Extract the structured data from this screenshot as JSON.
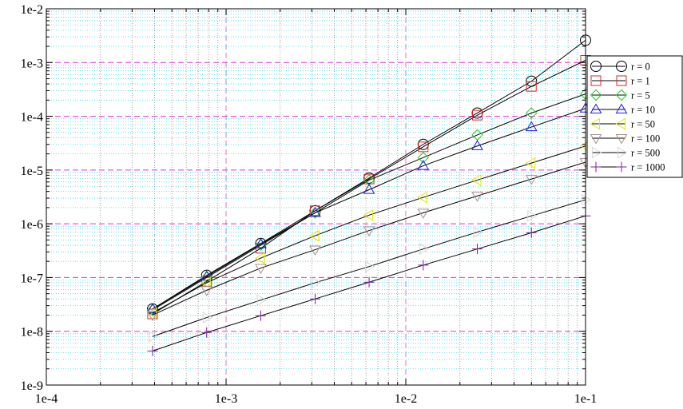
{
  "chart_data": {
    "type": "line",
    "title": "",
    "xlabel": "",
    "ylabel": "",
    "x_scale": "log",
    "y_scale": "log",
    "xlim": [
      0.0001,
      0.1
    ],
    "ylim": [
      1e-09,
      0.01
    ],
    "x_tick_labels": [
      "1e-4",
      "1e-3",
      "1e-2",
      "1e-1"
    ],
    "y_tick_labels": [
      "1e-9",
      "1e-8",
      "1e-7",
      "1e-6",
      "1e-5",
      "1e-4",
      "1e-3",
      "1e-2"
    ],
    "grid": {
      "major": "dashed magenta",
      "minor": "dotted cyan"
    },
    "legend_position": "right",
    "x": [
      0.00039,
      0.00078,
      0.00156,
      0.00313,
      0.00625,
      0.0125,
      0.025,
      0.05,
      0.1
    ],
    "series": [
      {
        "name": "r = 0",
        "marker": "circle",
        "color": "#000000",
        "values": [
          2.6e-08,
          1.1e-07,
          4.3e-07,
          1.75e-06,
          7.1e-06,
          3e-05,
          0.000115,
          0.00045,
          0.0026
        ]
      },
      {
        "name": "r = 1",
        "marker": "square",
        "color": "#d62728",
        "values": [
          2.1e-08,
          8.5e-08,
          3.5e-07,
          1.75e-06,
          6.8e-06,
          2.7e-05,
          0.000105,
          0.00036,
          0.0011
        ]
      },
      {
        "name": "r = 5",
        "marker": "diamond",
        "color": "#22cc22",
        "values": [
          2.5e-08,
          1e-07,
          4e-07,
          1.6e-06,
          6.5e-06,
          1.7e-05,
          4.5e-05,
          0.000115,
          0.00026
        ]
      },
      {
        "name": "r = 10",
        "marker": "triangle-up",
        "color": "#1a1aee",
        "values": [
          2.6e-08,
          1.05e-07,
          4.2e-07,
          1.6e-06,
          4.3e-06,
          1.2e-05,
          2.8e-05,
          6.3e-05,
          0.00014
        ]
      },
      {
        "name": "r = 50",
        "marker": "triangle-left",
        "color": "#e6e600",
        "values": [
          2.2e-08,
          8e-08,
          2.3e-07,
          6e-07,
          1.45e-06,
          3.1e-06,
          6.5e-06,
          1.35e-05,
          2.8e-05
        ]
      },
      {
        "name": "r = 100",
        "marker": "triangle-down",
        "color": "#a89090",
        "values": [
          2e-08,
          5.8e-08,
          1.5e-07,
          3.3e-07,
          7.5e-07,
          1.6e-06,
          3.3e-06,
          6.8e-06,
          1.4e-05
        ]
      },
      {
        "name": "r = 500",
        "marker": "triangle-right",
        "color": "#d8d8d8",
        "values": [
          8e-09,
          1.8e-08,
          3.8e-08,
          8e-08,
          1.6e-07,
          3.4e-07,
          7e-07,
          1.4e-06,
          2.8e-06
        ]
      },
      {
        "name": "r = 1000",
        "marker": "plus",
        "color": "#7a1fa0",
        "values": [
          4.3e-09,
          9.5e-09,
          1.95e-08,
          4e-08,
          8.2e-08,
          1.7e-07,
          3.4e-07,
          6.8e-07,
          1.4e-06
        ]
      }
    ]
  }
}
